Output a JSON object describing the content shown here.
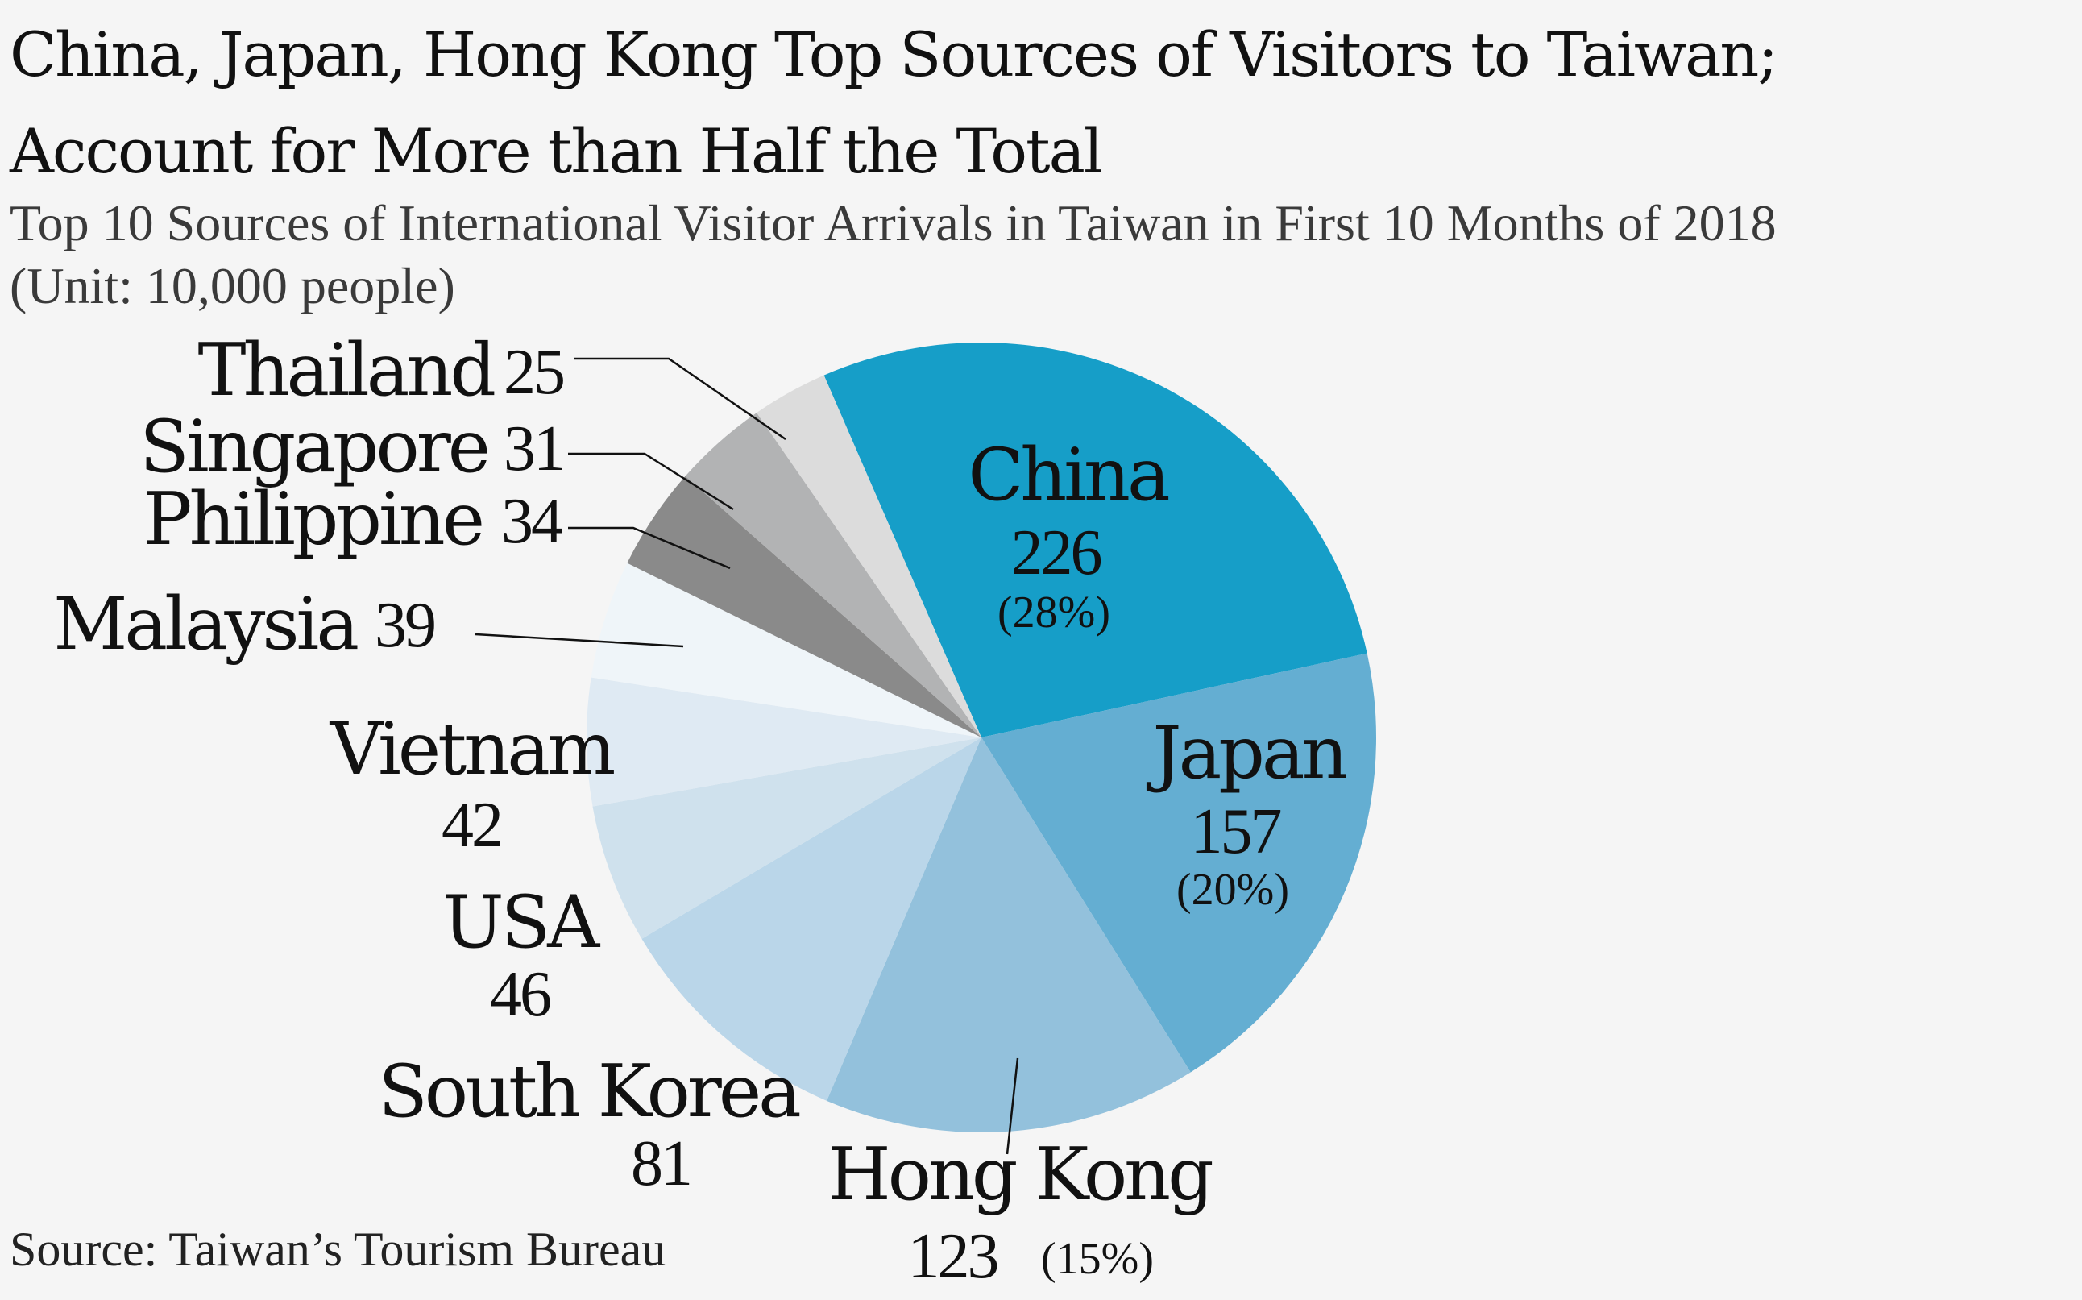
{
  "header": {
    "title_line1": "China, Japan, Hong Kong Top Sources of Visitors to Taiwan;",
    "title_line2": "Account for More than Half the Total",
    "subtitle_line1": "Top 10 Sources of International Visitor Arrivals in Taiwan in First 10 Months of 2018",
    "subtitle_line2": "(Unit: 10,000 people)"
  },
  "footer": {
    "source": "Source: Taiwan’s Tourism Bureau"
  },
  "chart_data": {
    "type": "pie",
    "title": "China, Japan, Hong Kong Top Sources of Visitors to Taiwan; Account for More than Half the Total",
    "subtitle": "Top 10 Sources of International Visitor Arrivals in Taiwan in First 10 Months of 2018",
    "unit": "(Unit: 10,000 people)",
    "legend": "none",
    "slices": [
      {
        "name": "China",
        "value": 226,
        "pct": "(28%)",
        "color": "#169ec8"
      },
      {
        "name": "Japan",
        "value": 157,
        "pct": "(20%)",
        "color": "#64aed2"
      },
      {
        "name": "Hong Kong",
        "value": 123,
        "pct": "(15%)",
        "color": "#93c1dc"
      },
      {
        "name": "South Korea",
        "value": 81,
        "pct": "",
        "color": "#bad6e9"
      },
      {
        "name": "USA",
        "value": 46,
        "pct": "",
        "color": "#cfe1ed"
      },
      {
        "name": "Vietnam",
        "value": 42,
        "pct": "",
        "color": "#dfeaf3"
      },
      {
        "name": "Malaysia",
        "value": 39,
        "pct": "",
        "color": "#eff5f9"
      },
      {
        "name": "Philippine",
        "value": 34,
        "pct": "",
        "color": "#8a8a8a"
      },
      {
        "name": "Singapore",
        "value": 31,
        "pct": "",
        "color": "#b2b3b4"
      },
      {
        "name": "Thailand",
        "value": 25,
        "pct": "",
        "color": "#dcdcdc"
      }
    ]
  }
}
